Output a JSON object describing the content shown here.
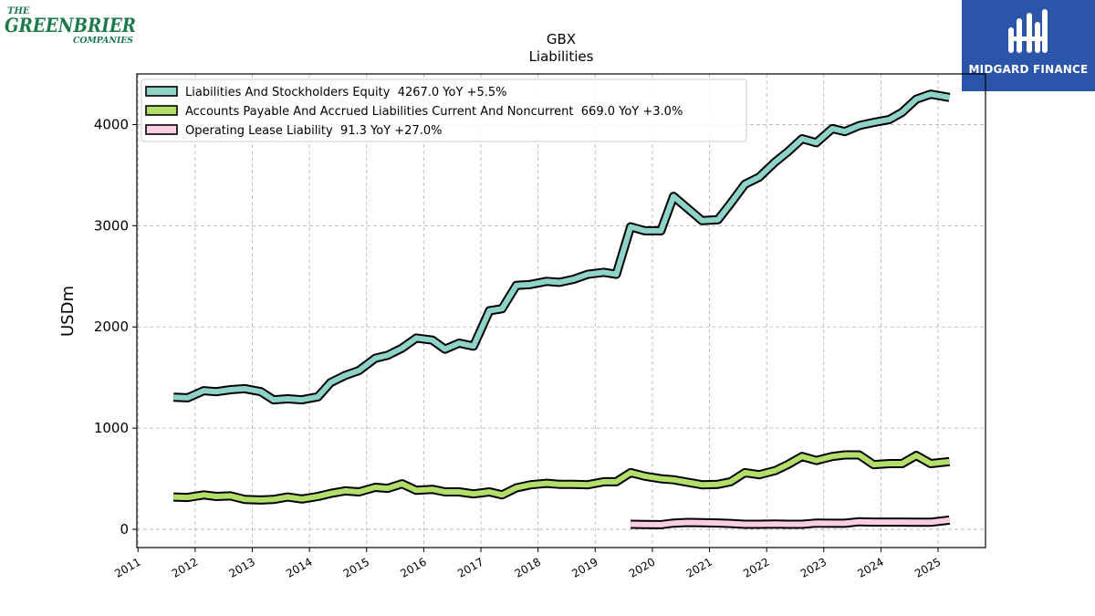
{
  "brand": {
    "left_logo": "THE GREENBRIER COMPANIES",
    "right_logo": "MIDGARD FINANCE"
  },
  "colors": {
    "equity": "#8dd3c7",
    "payables": "#b3de69",
    "lease": "#fccde5",
    "outline": "#000000",
    "grid": "#b0b0b0",
    "greenbrier_green": "#1a7a4a",
    "midgard_blue": "#2a55a8"
  },
  "chart_data": {
    "type": "line",
    "title": "GBX",
    "subtitle": "Liabilities",
    "xlabel": "",
    "ylabel": "USDm",
    "xlim": [
      2010.98,
      2025.83
    ],
    "ylim": [
      -180,
      4500
    ],
    "yticks": [
      0,
      1000,
      2000,
      3000,
      4000
    ],
    "xticks": [
      "2011",
      "2012",
      "2013",
      "2014",
      "2015",
      "2016",
      "2017",
      "2018",
      "2019",
      "2020",
      "2021",
      "2022",
      "2023",
      "2024",
      "2025"
    ],
    "grid": true,
    "legend_position": "top-left",
    "series": [
      {
        "name": "Liabilities And Stockholders Equity  4267.0 YoY +5.5%",
        "color_key": "equity",
        "x": [
          2011.62,
          2011.87,
          2012.15,
          2012.37,
          2012.62,
          2012.87,
          2013.15,
          2013.37,
          2013.62,
          2013.87,
          2014.15,
          2014.37,
          2014.62,
          2014.87,
          2015.15,
          2015.37,
          2015.62,
          2015.87,
          2016.15,
          2016.37,
          2016.62,
          2016.87,
          2017.15,
          2017.37,
          2017.62,
          2017.87,
          2018.15,
          2018.37,
          2018.62,
          2018.87,
          2019.15,
          2019.37,
          2019.62,
          2019.87,
          2020.15,
          2020.37,
          2020.62,
          2020.87,
          2021.15,
          2021.37,
          2021.62,
          2021.87,
          2022.15,
          2022.37,
          2022.62,
          2022.87,
          2023.15,
          2023.37,
          2023.62,
          2023.87,
          2024.15,
          2024.37,
          2024.62,
          2024.87,
          2025.2
        ],
        "values": [
          1305,
          1300,
          1370,
          1360,
          1380,
          1390,
          1360,
          1280,
          1290,
          1280,
          1310,
          1450,
          1520,
          1570,
          1690,
          1720,
          1790,
          1890,
          1870,
          1780,
          1840,
          1810,
          2160,
          2180,
          2410,
          2420,
          2450,
          2440,
          2470,
          2520,
          2540,
          2520,
          2990,
          2950,
          2950,
          3290,
          3170,
          3050,
          3060,
          3220,
          3410,
          3480,
          3630,
          3730,
          3860,
          3820,
          3960,
          3930,
          3990,
          4020,
          4050,
          4120,
          4250,
          4300,
          4267
        ]
      },
      {
        "name": "Accounts Payable And Accrued Liabilities Current And Noncurrent  669.0 YoY +3.0%",
        "color_key": "payables",
        "x": [
          2011.62,
          2011.87,
          2012.15,
          2012.37,
          2012.62,
          2012.87,
          2013.15,
          2013.37,
          2013.62,
          2013.87,
          2014.15,
          2014.37,
          2014.62,
          2014.87,
          2015.15,
          2015.37,
          2015.62,
          2015.87,
          2016.15,
          2016.37,
          2016.62,
          2016.87,
          2017.15,
          2017.37,
          2017.62,
          2017.87,
          2018.15,
          2018.37,
          2018.62,
          2018.87,
          2019.15,
          2019.37,
          2019.62,
          2019.87,
          2020.15,
          2020.37,
          2020.62,
          2020.87,
          2021.15,
          2021.37,
          2021.62,
          2021.87,
          2022.15,
          2022.37,
          2022.62,
          2022.87,
          2023.15,
          2023.37,
          2023.62,
          2023.87,
          2024.15,
          2024.37,
          2024.62,
          2024.87,
          2025.2
        ],
        "values": [
          320,
          315,
          340,
          325,
          330,
          295,
          290,
          295,
          320,
          300,
          325,
          355,
          380,
          370,
          415,
          405,
          450,
          385,
          395,
          370,
          370,
          350,
          370,
          340,
          410,
          440,
          455,
          445,
          445,
          440,
          470,
          470,
          560,
          525,
          500,
          490,
          465,
          440,
          445,
          470,
          560,
          540,
          580,
          640,
          720,
          680,
          720,
          735,
          735,
          640,
          650,
          650,
          730,
          650,
          669
        ]
      },
      {
        "name": "Operating Lease Liability  91.3 YoY +27.0%",
        "color_key": "lease",
        "x": [
          2019.62,
          2019.87,
          2020.15,
          2020.37,
          2020.62,
          2020.87,
          2021.15,
          2021.37,
          2021.62,
          2021.87,
          2022.15,
          2022.37,
          2022.62,
          2022.87,
          2023.15,
          2023.37,
          2023.62,
          2023.87,
          2024.15,
          2024.37,
          2024.62,
          2024.87,
          2025.2
        ],
        "values": [
          50,
          48,
          46,
          62,
          68,
          66,
          63,
          58,
          50,
          50,
          52,
          50,
          50,
          62,
          60,
          60,
          75,
          72,
          72,
          72,
          70,
          70,
          91.3
        ]
      }
    ]
  }
}
